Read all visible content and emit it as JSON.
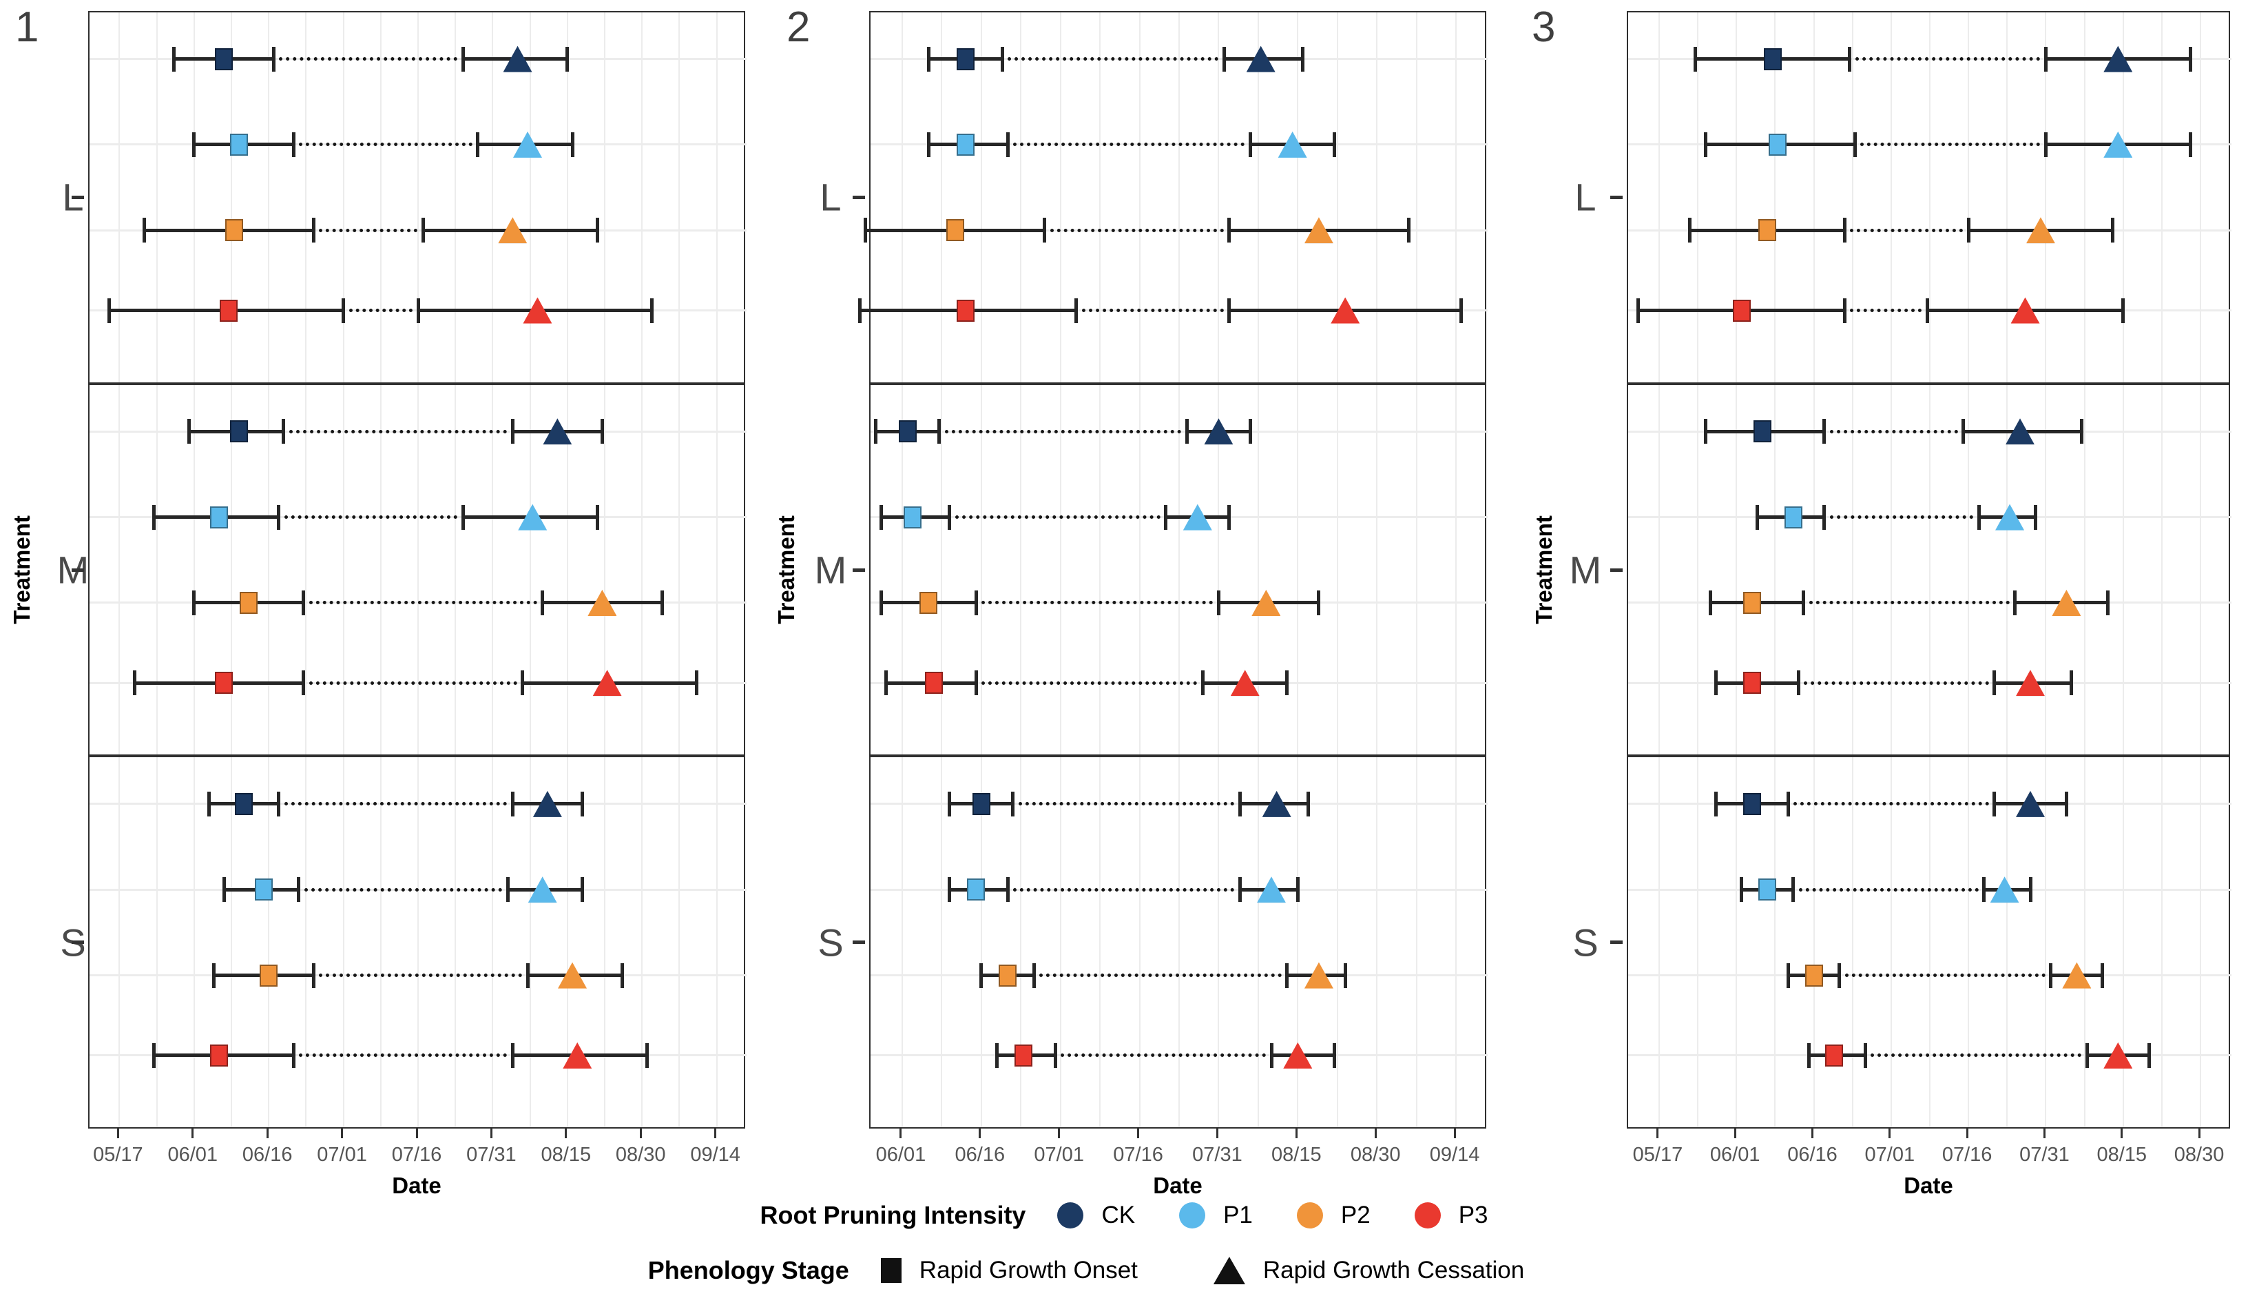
{
  "chart_data": {
    "type": "scatter",
    "title": "",
    "x_axis_title": "Date",
    "y_axis_title": "Treatment",
    "group_order_top_to_bottom": [
      "CK",
      "P1",
      "P2",
      "P3"
    ],
    "colors": {
      "CK": "#1C3A63",
      "P1": "#5BB9EB",
      "P2": "#F0943A",
      "P3": "#E9392F"
    },
    "grid": "light-gray vertical lines every half tick interval, horizontal line per row",
    "marker_semantics": {
      "square": "Rapid Growth Onset",
      "triangle": "Rapid Growth Cessation"
    },
    "panels": [
      {
        "tag": "1",
        "x_domain": [
          "05/11",
          "09/20"
        ],
        "x_ticks": [
          "05/17",
          "06/01",
          "06/16",
          "07/01",
          "07/16",
          "07/31",
          "08/15",
          "08/30",
          "09/14"
        ],
        "facets": [
          {
            "label": "L",
            "rows": [
              {
                "group": "CK",
                "onset": "06/07",
                "onset_lo": "05/28",
                "onset_hi": "06/17",
                "cessation": "08/05",
                "cessation_lo": "07/25",
                "cessation_hi": "08/15"
              },
              {
                "group": "P1",
                "onset": "06/10",
                "onset_lo": "06/01",
                "onset_hi": "06/21",
                "cessation": "08/07",
                "cessation_lo": "07/28",
                "cessation_hi": "08/16"
              },
              {
                "group": "P2",
                "onset": "06/09",
                "onset_lo": "05/22",
                "onset_hi": "06/25",
                "cessation": "08/04",
                "cessation_lo": "07/17",
                "cessation_hi": "08/21"
              },
              {
                "group": "P3",
                "onset": "06/08",
                "onset_lo": "05/15",
                "onset_hi": "07/01",
                "cessation": "08/09",
                "cessation_lo": "07/16",
                "cessation_hi": "09/01"
              }
            ]
          },
          {
            "label": "M",
            "rows": [
              {
                "group": "CK",
                "onset": "06/10",
                "onset_lo": "05/31",
                "onset_hi": "06/19",
                "cessation": "08/13",
                "cessation_lo": "08/04",
                "cessation_hi": "08/22"
              },
              {
                "group": "P1",
                "onset": "06/06",
                "onset_lo": "05/24",
                "onset_hi": "06/18",
                "cessation": "08/08",
                "cessation_lo": "07/25",
                "cessation_hi": "08/21"
              },
              {
                "group": "P2",
                "onset": "06/12",
                "onset_lo": "06/01",
                "onset_hi": "06/23",
                "cessation": "08/22",
                "cessation_lo": "08/10",
                "cessation_hi": "09/03"
              },
              {
                "group": "P3",
                "onset": "06/07",
                "onset_lo": "05/20",
                "onset_hi": "06/23",
                "cessation": "08/23",
                "cessation_lo": "08/06",
                "cessation_hi": "09/10"
              }
            ]
          },
          {
            "label": "S",
            "rows": [
              {
                "group": "CK",
                "onset": "06/11",
                "onset_lo": "06/04",
                "onset_hi": "06/18",
                "cessation": "08/11",
                "cessation_lo": "08/04",
                "cessation_hi": "08/18"
              },
              {
                "group": "P1",
                "onset": "06/15",
                "onset_lo": "06/07",
                "onset_hi": "06/22",
                "cessation": "08/10",
                "cessation_lo": "08/03",
                "cessation_hi": "08/18"
              },
              {
                "group": "P2",
                "onset": "06/16",
                "onset_lo": "06/05",
                "onset_hi": "06/25",
                "cessation": "08/16",
                "cessation_lo": "08/07",
                "cessation_hi": "08/26"
              },
              {
                "group": "P3",
                "onset": "06/06",
                "onset_lo": "05/24",
                "onset_hi": "06/21",
                "cessation": "08/17",
                "cessation_lo": "08/04",
                "cessation_hi": "08/31"
              }
            ]
          }
        ]
      },
      {
        "tag": "2",
        "x_domain": [
          "05/26",
          "09/20"
        ],
        "x_ticks": [
          "06/01",
          "06/16",
          "07/01",
          "07/16",
          "07/31",
          "08/15",
          "08/30",
          "09/14"
        ],
        "facets": [
          {
            "label": "L",
            "rows": [
              {
                "group": "CK",
                "onset": "06/13",
                "onset_lo": "06/06",
                "onset_hi": "06/20",
                "cessation": "08/08",
                "cessation_lo": "08/01",
                "cessation_hi": "08/16"
              },
              {
                "group": "P1",
                "onset": "06/13",
                "onset_lo": "06/06",
                "onset_hi": "06/21",
                "cessation": "08/14",
                "cessation_lo": "08/06",
                "cessation_hi": "08/22"
              },
              {
                "group": "P2",
                "onset": "06/11",
                "onset_lo": "05/25",
                "onset_hi": "06/28",
                "cessation": "08/19",
                "cessation_lo": "08/02",
                "cessation_hi": "09/05"
              },
              {
                "group": "P3",
                "onset": "06/13",
                "onset_lo": "05/24",
                "onset_hi": "07/04",
                "cessation": "08/24",
                "cessation_lo": "08/02",
                "cessation_hi": "09/15"
              }
            ]
          },
          {
            "label": "M",
            "rows": [
              {
                "group": "CK",
                "onset": "06/02",
                "onset_lo": "05/27",
                "onset_hi": "06/08",
                "cessation": "07/31",
                "cessation_lo": "07/25",
                "cessation_hi": "08/06"
              },
              {
                "group": "P1",
                "onset": "06/03",
                "onset_lo": "05/28",
                "onset_hi": "06/10",
                "cessation": "07/27",
                "cessation_lo": "07/21",
                "cessation_hi": "08/02"
              },
              {
                "group": "P2",
                "onset": "06/06",
                "onset_lo": "05/28",
                "onset_hi": "06/15",
                "cessation": "08/09",
                "cessation_lo": "07/31",
                "cessation_hi": "08/19"
              },
              {
                "group": "P3",
                "onset": "06/07",
                "onset_lo": "05/29",
                "onset_hi": "06/15",
                "cessation": "08/05",
                "cessation_lo": "07/28",
                "cessation_hi": "08/13"
              }
            ]
          },
          {
            "label": "S",
            "rows": [
              {
                "group": "CK",
                "onset": "06/16",
                "onset_lo": "06/10",
                "onset_hi": "06/22",
                "cessation": "08/11",
                "cessation_lo": "08/04",
                "cessation_hi": "08/17"
              },
              {
                "group": "P1",
                "onset": "06/15",
                "onset_lo": "06/10",
                "onset_hi": "06/21",
                "cessation": "08/10",
                "cessation_lo": "08/04",
                "cessation_hi": "08/15"
              },
              {
                "group": "P2",
                "onset": "06/21",
                "onset_lo": "06/16",
                "onset_hi": "06/26",
                "cessation": "08/19",
                "cessation_lo": "08/13",
                "cessation_hi": "08/24"
              },
              {
                "group": "P3",
                "onset": "06/24",
                "onset_lo": "06/19",
                "onset_hi": "06/30",
                "cessation": "08/15",
                "cessation_lo": "08/10",
                "cessation_hi": "08/22"
              }
            ]
          }
        ]
      },
      {
        "tag": "3",
        "x_domain": [
          "05/11",
          "09/05"
        ],
        "x_ticks": [
          "05/17",
          "06/01",
          "06/16",
          "07/01",
          "07/16",
          "07/31",
          "08/15",
          "08/30"
        ],
        "facets": [
          {
            "label": "L",
            "rows": [
              {
                "group": "CK",
                "onset": "06/08",
                "onset_lo": "05/24",
                "onset_hi": "06/23",
                "cessation": "08/14",
                "cessation_lo": "07/31",
                "cessation_hi": "08/28"
              },
              {
                "group": "P1",
                "onset": "06/09",
                "onset_lo": "05/26",
                "onset_hi": "06/24",
                "cessation": "08/14",
                "cessation_lo": "07/31",
                "cessation_hi": "08/28"
              },
              {
                "group": "P2",
                "onset": "06/07",
                "onset_lo": "05/23",
                "onset_hi": "06/22",
                "cessation": "07/30",
                "cessation_lo": "07/16",
                "cessation_hi": "08/13"
              },
              {
                "group": "P3",
                "onset": "06/02",
                "onset_lo": "05/13",
                "onset_hi": "06/22",
                "cessation": "07/27",
                "cessation_lo": "07/08",
                "cessation_hi": "08/15"
              }
            ]
          },
          {
            "label": "M",
            "rows": [
              {
                "group": "CK",
                "onset": "06/06",
                "onset_lo": "05/26",
                "onset_hi": "06/18",
                "cessation": "07/26",
                "cessation_lo": "07/15",
                "cessation_hi": "08/07"
              },
              {
                "group": "P1",
                "onset": "06/12",
                "onset_lo": "06/05",
                "onset_hi": "06/18",
                "cessation": "07/24",
                "cessation_lo": "07/18",
                "cessation_hi": "07/29"
              },
              {
                "group": "P2",
                "onset": "06/04",
                "onset_lo": "05/27",
                "onset_hi": "06/14",
                "cessation": "08/04",
                "cessation_lo": "07/25",
                "cessation_hi": "08/12"
              },
              {
                "group": "P3",
                "onset": "06/04",
                "onset_lo": "05/28",
                "onset_hi": "06/13",
                "cessation": "07/28",
                "cessation_lo": "07/21",
                "cessation_hi": "08/05"
              }
            ]
          },
          {
            "label": "S",
            "rows": [
              {
                "group": "CK",
                "onset": "06/04",
                "onset_lo": "05/28",
                "onset_hi": "06/11",
                "cessation": "07/28",
                "cessation_lo": "07/21",
                "cessation_hi": "08/04"
              },
              {
                "group": "P1",
                "onset": "06/07",
                "onset_lo": "06/02",
                "onset_hi": "06/12",
                "cessation": "07/23",
                "cessation_lo": "07/19",
                "cessation_hi": "07/28"
              },
              {
                "group": "P2",
                "onset": "06/16",
                "onset_lo": "06/11",
                "onset_hi": "06/21",
                "cessation": "08/06",
                "cessation_lo": "08/01",
                "cessation_hi": "08/11"
              },
              {
                "group": "P3",
                "onset": "06/20",
                "onset_lo": "06/15",
                "onset_hi": "06/26",
                "cessation": "08/14",
                "cessation_lo": "08/08",
                "cessation_hi": "08/20"
              }
            ]
          }
        ]
      }
    ]
  },
  "legends": {
    "intensity": {
      "title": "Root Pruning Intensity",
      "items": [
        {
          "label": "CK",
          "color": "#1C3A63"
        },
        {
          "label": "P1",
          "color": "#5BB9EB"
        },
        {
          "label": "P2",
          "color": "#F0943A"
        },
        {
          "label": "P3",
          "color": "#E9392F"
        }
      ]
    },
    "stage": {
      "title": "Phenology Stage",
      "items": [
        {
          "label": "Rapid Growth Onset",
          "marker": "square"
        },
        {
          "label": "Rapid Growth Cessation",
          "marker": "triangle"
        }
      ]
    }
  }
}
